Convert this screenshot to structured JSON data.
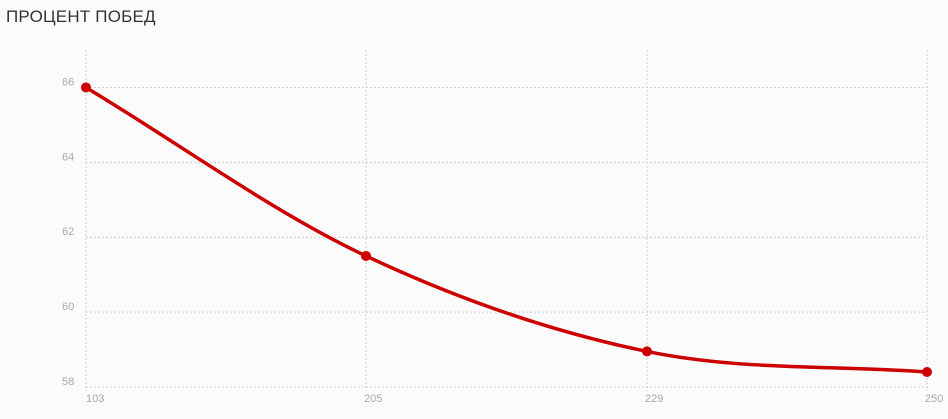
{
  "chart_data": {
    "type": "line",
    "title": "ПРОЦЕНТ ПОБЕД",
    "xlabel": "",
    "ylabel": "",
    "categories": [
      "103",
      "205",
      "229",
      "250"
    ],
    "series": [
      {
        "values": [
          66.0,
          61.5,
          58.95,
          58.4
        ]
      }
    ],
    "ylim": [
      58,
      67
    ],
    "yticks": [
      58,
      60,
      62,
      64,
      66
    ],
    "grid": true,
    "line_color": "#cc0000",
    "curve": "smooth"
  }
}
